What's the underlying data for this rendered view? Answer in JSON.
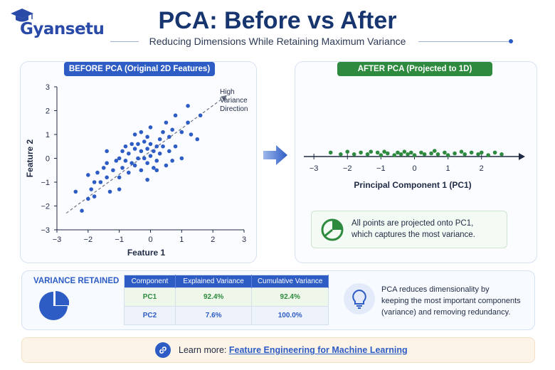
{
  "brand": {
    "name": "Gyansetu"
  },
  "header": {
    "title": "PCA: Before vs After",
    "subtitle": "Reducing Dimensions While Retaining Maximum Variance"
  },
  "before": {
    "label": "BEFORE PCA (Original 2D Features)",
    "annotation": [
      "High",
      "Variance",
      "Direction"
    ]
  },
  "after": {
    "label": "AFTER PCA (Projected to 1D)",
    "info_lines": [
      "All points are projected onto PC1,",
      "which captures the most variance."
    ]
  },
  "variance": {
    "title": "VARIANCE RETAINED",
    "headers": [
      "Component",
      "Explained Variance",
      "Cumulative Variance"
    ],
    "rows": [
      [
        "PC1",
        "92.4%",
        "92.4%"
      ],
      [
        "PC2",
        "7.6%",
        "100.0%"
      ]
    ],
    "note_lines": [
      "PCA reduces dimensionality by",
      "keeping the most important components",
      "(variance) and removing redundancy."
    ]
  },
  "learn": {
    "prefix": "Learn more:",
    "link_text": "Feature Engineering for Machine Learning"
  },
  "colors": {
    "blue": "#2d5cc4",
    "green": "#2e8a3e",
    "navy": "#17356f"
  },
  "chart_data": [
    {
      "type": "scatter",
      "title": "",
      "xlabel": "Feature 1",
      "ylabel": "Feature 2",
      "xlim": [
        -3,
        3
      ],
      "ylim": [
        -3,
        3
      ],
      "xticks": [
        -3,
        -2,
        -1,
        0,
        1,
        2,
        3
      ],
      "yticks": [
        -2,
        -1,
        0,
        1,
        2,
        3
      ],
      "ytick_labels_extra_bottom": -3,
      "grid": false,
      "color": "#2d5cc4",
      "points": [
        [
          -2.4,
          -1.4
        ],
        [
          -2.2,
          -2.2
        ],
        [
          -2.0,
          -1.7
        ],
        [
          -2.0,
          -0.7
        ],
        [
          -1.9,
          -1.3
        ],
        [
          -1.8,
          -1.0
        ],
        [
          -1.7,
          -0.6
        ],
        [
          -1.6,
          -1.0
        ],
        [
          -1.5,
          -0.4
        ],
        [
          -1.4,
          -0.8
        ],
        [
          -1.4,
          -0.2
        ],
        [
          -1.4,
          0.3
        ],
        [
          -1.3,
          -1.4
        ],
        [
          -1.2,
          -0.5
        ],
        [
          -1.1,
          -0.1
        ],
        [
          -1.0,
          -1.3
        ],
        [
          -1.0,
          -0.8
        ],
        [
          -1.0,
          0.0
        ],
        [
          -0.9,
          -0.4
        ],
        [
          -0.9,
          0.3
        ],
        [
          -0.8,
          -0.1
        ],
        [
          -0.8,
          0.5
        ],
        [
          -0.7,
          -0.6
        ],
        [
          -0.7,
          0.2
        ],
        [
          -0.6,
          -0.2
        ],
        [
          -0.6,
          0.6
        ],
        [
          -0.5,
          -0.3
        ],
        [
          -0.5,
          0.4
        ],
        [
          -0.5,
          1.0
        ],
        [
          -0.4,
          0.0
        ],
        [
          -0.4,
          0.6
        ],
        [
          -0.3,
          -0.5
        ],
        [
          -0.3,
          0.3
        ],
        [
          -0.3,
          1.1
        ],
        [
          -0.2,
          0.0
        ],
        [
          -0.2,
          0.7
        ],
        [
          -0.1,
          -0.2
        ],
        [
          -0.1,
          0.4
        ],
        [
          -0.1,
          0.9
        ],
        [
          0.0,
          0.1
        ],
        [
          0.0,
          0.6
        ],
        [
          0.0,
          1.3
        ],
        [
          0.1,
          -0.4
        ],
        [
          0.1,
          0.3
        ],
        [
          0.2,
          0.5
        ],
        [
          0.2,
          -0.1
        ],
        [
          0.3,
          0.8
        ],
        [
          0.3,
          0.2
        ],
        [
          0.4,
          1.1
        ],
        [
          0.4,
          0.5
        ],
        [
          0.5,
          -0.3
        ],
        [
          0.5,
          1.5
        ],
        [
          0.6,
          0.3
        ],
        [
          0.6,
          0.9
        ],
        [
          0.7,
          1.2
        ],
        [
          0.7,
          -0.1
        ],
        [
          0.8,
          0.5
        ],
        [
          0.8,
          1.8
        ],
        [
          1.0,
          1.1
        ],
        [
          1.0,
          0.0
        ],
        [
          1.2,
          1.5
        ],
        [
          1.2,
          2.2
        ],
        [
          1.3,
          1.0
        ],
        [
          1.5,
          0.8
        ],
        [
          1.6,
          1.8
        ],
        [
          -0.1,
          -0.9
        ],
        [
          0.2,
          -0.5
        ],
        [
          -1.8,
          -1.6
        ]
      ],
      "annotation": "High Variance Direction"
    },
    {
      "type": "scatter",
      "title": "",
      "xlabel": "Principal Component 1 (PC1)",
      "ylabel": "",
      "xlim": [
        -3.3,
        3.3
      ],
      "xticks": [
        -3,
        -2,
        -1,
        0,
        1,
        2
      ],
      "color": "#2e8a3e",
      "points": [
        [
          -2.5,
          0.3
        ],
        [
          -2.2,
          0.1
        ],
        [
          -2.0,
          0.4
        ],
        [
          -1.8,
          0.1
        ],
        [
          -1.6,
          0.3
        ],
        [
          -1.4,
          0.1
        ],
        [
          -1.3,
          0.4
        ],
        [
          -1.1,
          0.3
        ],
        [
          -1.0,
          0.0
        ],
        [
          -0.9,
          0.4
        ],
        [
          -0.8,
          0.2
        ],
        [
          -0.6,
          0.0
        ],
        [
          -0.5,
          0.3
        ],
        [
          -0.4,
          0.1
        ],
        [
          -0.3,
          0.4
        ],
        [
          -0.2,
          0.1
        ],
        [
          -0.1,
          0.3
        ],
        [
          0.0,
          0.0
        ],
        [
          0.2,
          0.3
        ],
        [
          0.3,
          0.1
        ],
        [
          0.5,
          0.2
        ],
        [
          0.6,
          0.5
        ],
        [
          0.7,
          0.1
        ],
        [
          0.9,
          0.3
        ],
        [
          1.0,
          0.0
        ],
        [
          1.2,
          0.2
        ],
        [
          1.4,
          0.4
        ],
        [
          1.5,
          0.1
        ],
        [
          1.7,
          0.3
        ],
        [
          1.9,
          0.1
        ],
        [
          2.0,
          0.3
        ],
        [
          2.2,
          0.0
        ],
        [
          2.4,
          0.3
        ],
        [
          2.6,
          0.1
        ]
      ]
    }
  ]
}
